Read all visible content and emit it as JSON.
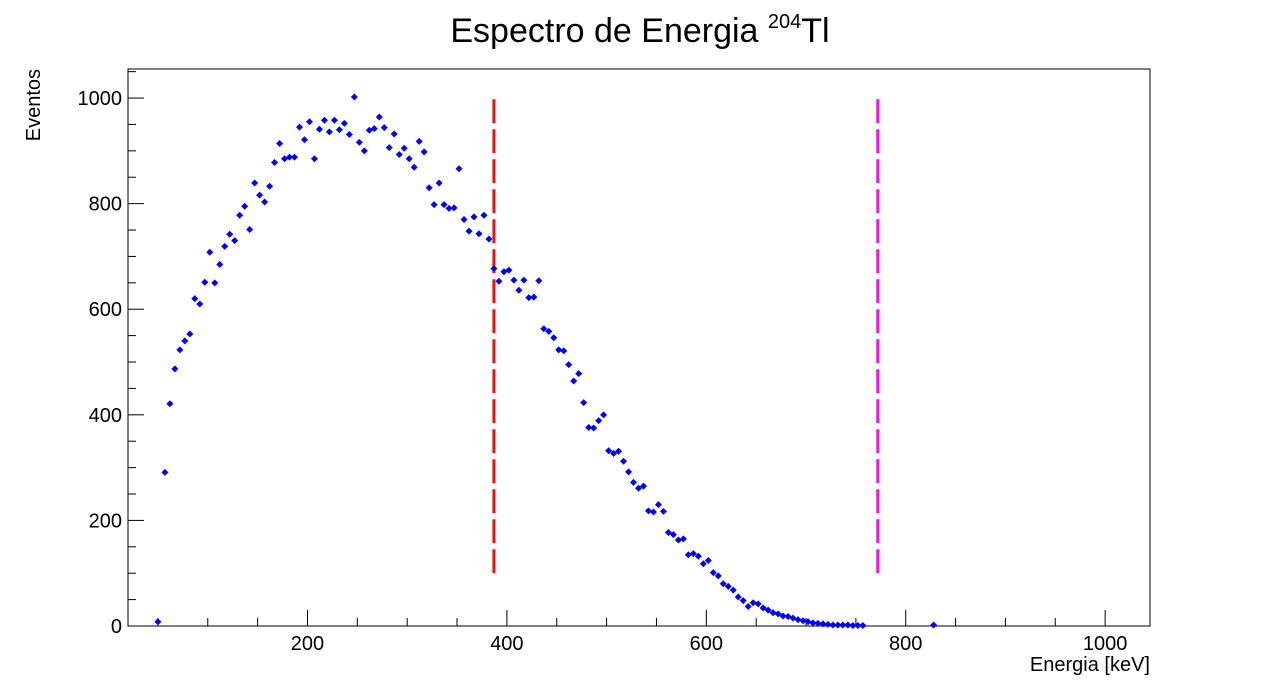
{
  "chart_data": {
    "type": "scatter",
    "title": "Espectro de Energia ",
    "title_sup": "204",
    "title_suffix": "Tl",
    "xlabel": "Energia [keV]",
    "ylabel": "Eventos",
    "xlim": [
      20,
      1045
    ],
    "ylim": [
      0,
      1055
    ],
    "x_ticks": [
      200,
      400,
      600,
      800,
      1000
    ],
    "y_ticks": [
      0,
      200,
      400,
      600,
      800,
      1000
    ],
    "grid": false,
    "marker_color": "#0000ff",
    "vlines": [
      {
        "x": 387,
        "y_from": 100,
        "y_to": 1000,
        "color": "#ee1111"
      },
      {
        "x": 772,
        "y_from": 100,
        "y_to": 1000,
        "color": "#ee11ee"
      }
    ],
    "series": [
      {
        "x": [
          50,
          57,
          62,
          67,
          72,
          77,
          82,
          87,
          92,
          97,
          102,
          107,
          112,
          117,
          122,
          127,
          132,
          137,
          142,
          147,
          152,
          157,
          162,
          167,
          172,
          177,
          182,
          187,
          192,
          197,
          202,
          207,
          212,
          217,
          222,
          227,
          232,
          237,
          242,
          247,
          252,
          257,
          262,
          267,
          272,
          277,
          282,
          287,
          292,
          297,
          302,
          307,
          312,
          317,
          322,
          327,
          332,
          337,
          342,
          347,
          352,
          357,
          362,
          367,
          372,
          377,
          382,
          387,
          392,
          397,
          402,
          407,
          412,
          417,
          422,
          427,
          432,
          437,
          442,
          447,
          452,
          457,
          462,
          467,
          472,
          477,
          482,
          487,
          492,
          497,
          502,
          507,
          512,
          517,
          522,
          527,
          532,
          537,
          542,
          547,
          552,
          557,
          562,
          567,
          572,
          577,
          582,
          587,
          592,
          597,
          602,
          607,
          612,
          617,
          622,
          627,
          632,
          637,
          642,
          647,
          652,
          657,
          662,
          667,
          672,
          677,
          682,
          687,
          692,
          697,
          702,
          707,
          712,
          717,
          722,
          727,
          732,
          737,
          742,
          747,
          752,
          757,
          828
        ],
        "y": [
          8,
          291,
          421,
          487,
          523,
          540,
          553,
          620,
          610,
          651,
          708,
          650,
          685,
          719,
          742,
          730,
          778,
          795,
          751,
          839,
          816,
          803,
          833,
          878,
          914,
          885,
          888,
          888,
          945,
          921,
          955,
          885,
          941,
          958,
          936,
          958,
          940,
          952,
          931,
          1002,
          916,
          900,
          939,
          942,
          964,
          944,
          906,
          932,
          893,
          905,
          885,
          869,
          918,
          898,
          830,
          798,
          839,
          798,
          791,
          792,
          866,
          770,
          748,
          775,
          743,
          778,
          733,
          677,
          653,
          671,
          674,
          655,
          636,
          655,
          622,
          623,
          654,
          563,
          558,
          546,
          523,
          521,
          495,
          464,
          478,
          423,
          376,
          375,
          389,
          400,
          332,
          327,
          331,
          312,
          292,
          272,
          261,
          265,
          218,
          216,
          230,
          217,
          177,
          173,
          163,
          165,
          135,
          137,
          132,
          118,
          124,
          101,
          95,
          80,
          75,
          68,
          55,
          48,
          37,
          44,
          42,
          34,
          30,
          25,
          23,
          19,
          18,
          15,
          12,
          10,
          8,
          6,
          5,
          4,
          3,
          2,
          2,
          2,
          2,
          1,
          1,
          1,
          2
        ]
      }
    ]
  }
}
